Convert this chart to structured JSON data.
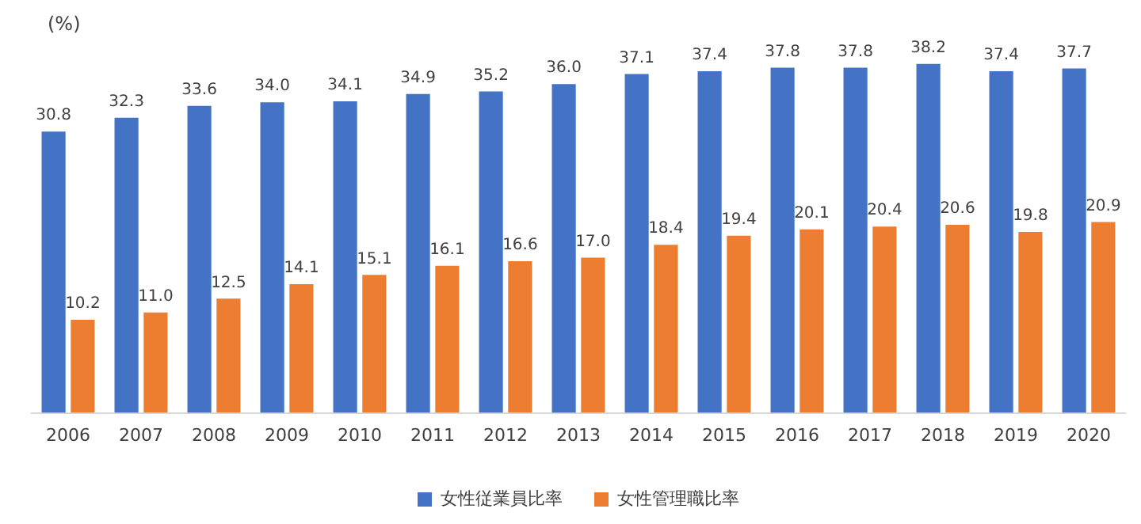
{
  "chart_data": {
    "type": "bar",
    "ylabel": "(%)",
    "categories": [
      "2006",
      "2007",
      "2008",
      "2009",
      "2010",
      "2011",
      "2012",
      "2013",
      "2014",
      "2015",
      "2016",
      "2017",
      "2018",
      "2019",
      "2020"
    ],
    "series": [
      {
        "name": "女性従業員比率",
        "color": "#4472c4",
        "values": [
          30.8,
          32.3,
          33.6,
          34.0,
          34.1,
          34.9,
          35.2,
          36.0,
          37.1,
          37.4,
          37.8,
          37.8,
          38.2,
          37.4,
          37.7
        ],
        "value_labels": [
          "30.8",
          "32.3",
          "33.6",
          "34.0",
          "34.1",
          "34.9",
          "35.2",
          "36.0",
          "37.1",
          "37.4",
          "37.8",
          "37.8",
          "38.2",
          "37.4",
          "37.7"
        ]
      },
      {
        "name": "女性管理職比率",
        "color": "#ed7d31",
        "values": [
          10.2,
          11.0,
          12.5,
          14.1,
          15.1,
          16.1,
          16.6,
          17.0,
          18.4,
          19.4,
          20.1,
          20.4,
          20.6,
          19.8,
          20.9
        ],
        "value_labels": [
          "10.2",
          "11.0",
          "12.5",
          "14.1",
          "15.1",
          "16.1",
          "16.6",
          "17.0",
          "18.4",
          "19.4",
          "20.1",
          "20.4",
          "20.6",
          "19.8",
          "20.9"
        ]
      }
    ],
    "tick_labels": "x",
    "grid": false,
    "legend": "bottom"
  }
}
